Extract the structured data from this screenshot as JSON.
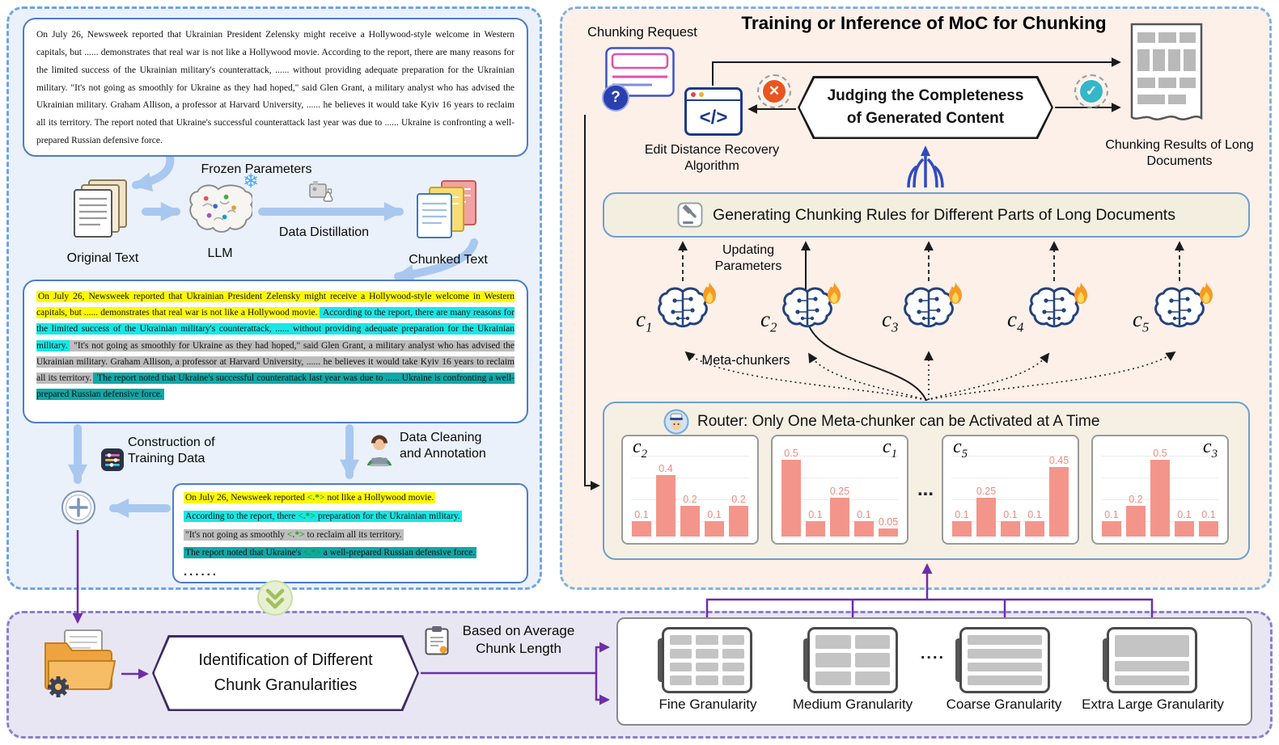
{
  "icons": {
    "snowflake": "❄",
    "question_mark": "?",
    "cross": "✕",
    "check": "✓",
    "code_glyph": "</>"
  },
  "left": {
    "source_text": "On July 26, Newsweek reported that Ukrainian President Zelensky might receive a Hollywood-style welcome in Western capitals, but ...... demonstrates that real war is not like a Hollywood movie. According to the report, there are many reasons for the limited success of the Ukrainian military's counterattack, ...... without providing adequate preparation for the Ukrainian military. \"It's not going as smoothly for Ukraine as they had hoped,\" said Glen Grant, a military analyst who has advised the Ukrainian military. Graham Allison, a professor at Harvard University, ...... he believes it would take Kyiv 16 years to reclaim all its territory. The report noted that Ukraine's successful counterattack last year was due to ...... Ukraine is confronting a well-prepared Russian defensive force.",
    "frozen_parameters_label": "Frozen Parameters",
    "original_text_label": "Original Text",
    "llm_label": "LLM",
    "data_distillation_label": "Data Distillation",
    "chunked_text_label": "Chunked Text",
    "chunks": [
      {
        "text": "On July 26, Newsweek reported that Ukrainian President Zelensky might receive a Hollywood-style welcome in Western capitals, but ...... demonstrates that real war is not like a Hollywood movie.",
        "highlight": "#fdf900"
      },
      {
        "text": " According to the report, there are many reasons for the limited success of the Ukrainian military's counterattack, ...... without providing adequate preparation for the Ukrainian military.",
        "highlight": "#17e7e7"
      },
      {
        "text": " \"It's not going as smoothly for Ukraine as they had hoped,\" said Glen Grant, a military analyst who has advised the Ukrainian military. Graham Allison, a professor at Harvard University, ...... he believes it would take Kyiv 16 years to reclaim all its territory.",
        "highlight": "#bdbdbd"
      },
      {
        "text": " The report noted that Ukraine's successful counterattack last year was due to ...... Ukraine is confronting a well-prepared Russian defensive force.",
        "highlight": "#0fa8a8"
      }
    ],
    "construction_label": "Construction of Training Data",
    "cleaning_label": "Data Cleaning and Annotation",
    "training_samples": [
      {
        "pre": "On July 26, Newsweek reported ",
        "marker": "<.*>",
        "post": " not like a Hollywood movie.",
        "highlight": "#fdf900"
      },
      {
        "pre": "According to the report, there ",
        "marker": "<.*>",
        "post": " preparation for the Ukrainian military.",
        "highlight": "#17e7e7"
      },
      {
        "pre": "\"It's not going as smoothly ",
        "marker": "<.*>",
        "post": " to reclaim all its territory.",
        "highlight": "#bdbdbd"
      },
      {
        "pre": "The report noted that Ukraine's ",
        "marker": "<.*>",
        "post": " a well-prepared Russian defensive force.",
        "highlight": "#0fa8a8"
      }
    ],
    "training_ellipsis": "......"
  },
  "right": {
    "title": "Training or Inference of MoC  for Chunking",
    "chunking_request_label": "Chunking Request",
    "edit_distance_label": "Edit Distance Recovery Algorithm",
    "judging_line1": "Judging the Completeness",
    "judging_line2": "of Generated Content",
    "results_label": "Chunking Results of Long Documents",
    "rules_label": "Generating Chunking Rules for Different Parts of Long Documents",
    "updating_label": "Updating Parameters",
    "meta_chunkers_label": "Meta-chunkers",
    "chunkers": [
      {
        "base": "c",
        "sub": "1"
      },
      {
        "base": "c",
        "sub": "2"
      },
      {
        "base": "c",
        "sub": "3"
      },
      {
        "base": "c",
        "sub": "4"
      },
      {
        "base": "c",
        "sub": "5"
      }
    ],
    "router": {
      "label": "Router: Only One Meta-chunker can be Activated at A Time",
      "dots": "...",
      "charts": [
        {
          "label": {
            "base": "c",
            "sub": "2"
          },
          "values": [
            0.1,
            0.4,
            0.2,
            0.1,
            0.2
          ]
        },
        {
          "label": {
            "base": "c",
            "sub": "1"
          },
          "values": [
            0.5,
            0.1,
            0.25,
            0.1,
            0.05
          ]
        },
        {
          "label": {
            "base": "c",
            "sub": "5"
          },
          "values": [
            0.1,
            0.25,
            0.1,
            0.1,
            0.45
          ]
        },
        {
          "label": {
            "base": "c",
            "sub": "3"
          },
          "values": [
            0.1,
            0.2,
            0.5,
            0.1,
            0.1
          ]
        }
      ]
    }
  },
  "bottom": {
    "identification_label": "Identification of Different Chunk Granularities",
    "based_on_label": "Based on Average Chunk Length",
    "granularity_labels": [
      "Fine Granularity",
      "Medium Granularity",
      "Coarse Granularity",
      "Extra Large Granularity"
    ],
    "dots": "...."
  }
}
